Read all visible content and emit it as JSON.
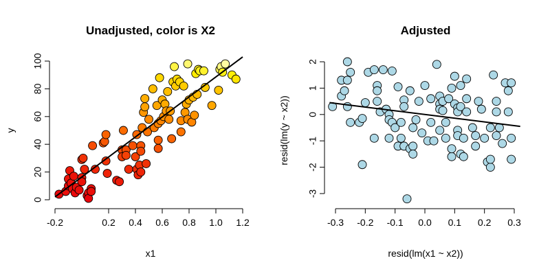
{
  "chart_data": [
    {
      "type": "scatter",
      "title": "Unadjusted, color is X2",
      "xlabel": "x1",
      "ylabel": "y",
      "xlim": [
        -0.2,
        1.2
      ],
      "ylim": [
        0,
        100
      ],
      "xticks": [
        "-0.2",
        "0.2",
        "0.4",
        "0.6",
        "0.8",
        "1.0",
        "1.2"
      ],
      "xtick_values": [
        -0.2,
        0.2,
        0.4,
        0.6,
        0.8,
        1.0,
        1.2
      ],
      "yticks": [
        "0",
        "20",
        "40",
        "60",
        "80",
        "100"
      ],
      "ytick_values": [
        0,
        20,
        40,
        60,
        80,
        100
      ],
      "color_scale": [
        "#e8000b",
        "#ff8000",
        "#ffee00",
        "#ffffcc"
      ],
      "line": {
        "x": [
          -0.2,
          1.2
        ],
        "y": [
          2,
          103
        ],
        "color": "#000000"
      },
      "points": [
        {
          "x": -0.17,
          "y": 4,
          "c": 0.02
        },
        {
          "x": -0.12,
          "y": 6,
          "c": 0.04
        },
        {
          "x": -0.1,
          "y": 10,
          "c": 0.03
        },
        {
          "x": -0.1,
          "y": 15,
          "c": 0.05
        },
        {
          "x": -0.09,
          "y": 21,
          "c": 0.06
        },
        {
          "x": -0.08,
          "y": 12,
          "c": 0.04
        },
        {
          "x": -0.07,
          "y": 8,
          "c": 0.03
        },
        {
          "x": -0.06,
          "y": 17,
          "c": 0.05
        },
        {
          "x": -0.05,
          "y": 5,
          "c": 0.02
        },
        {
          "x": -0.04,
          "y": 9,
          "c": 0.04
        },
        {
          "x": -0.02,
          "y": 7,
          "c": 0.03
        },
        {
          "x": 0.0,
          "y": 16,
          "c": 0.06
        },
        {
          "x": 0.0,
          "y": 13,
          "c": 0.05
        },
        {
          "x": 0.0,
          "y": 29,
          "c": 0.12
        },
        {
          "x": 0.01,
          "y": 30,
          "c": 0.13
        },
        {
          "x": 0.02,
          "y": 22,
          "c": 0.1
        },
        {
          "x": 0.04,
          "y": 3,
          "c": 0.02
        },
        {
          "x": 0.05,
          "y": 5,
          "c": 0.03
        },
        {
          "x": 0.05,
          "y": 1,
          "c": 0.01
        },
        {
          "x": 0.07,
          "y": 8,
          "c": 0.04
        },
        {
          "x": 0.07,
          "y": 6,
          "c": 0.04
        },
        {
          "x": 0.08,
          "y": 39,
          "c": 0.2
        },
        {
          "x": 0.1,
          "y": 22,
          "c": 0.1
        },
        {
          "x": 0.16,
          "y": 41,
          "c": 0.22
        },
        {
          "x": 0.17,
          "y": 42,
          "c": 0.23
        },
        {
          "x": 0.18,
          "y": 47,
          "c": 0.26
        },
        {
          "x": 0.18,
          "y": 28,
          "c": 0.13
        },
        {
          "x": 0.19,
          "y": 19,
          "c": 0.09
        },
        {
          "x": 0.26,
          "y": 14,
          "c": 0.07
        },
        {
          "x": 0.28,
          "y": 13,
          "c": 0.07
        },
        {
          "x": 0.3,
          "y": 36,
          "c": 0.19
        },
        {
          "x": 0.3,
          "y": 31,
          "c": 0.16
        },
        {
          "x": 0.31,
          "y": 50,
          "c": 0.28
        },
        {
          "x": 0.33,
          "y": 36,
          "c": 0.2
        },
        {
          "x": 0.33,
          "y": 32,
          "c": 0.17
        },
        {
          "x": 0.35,
          "y": 22,
          "c": 0.11
        },
        {
          "x": 0.38,
          "y": 39,
          "c": 0.21
        },
        {
          "x": 0.4,
          "y": 31,
          "c": 0.17
        },
        {
          "x": 0.41,
          "y": 47,
          "c": 0.27
        },
        {
          "x": 0.41,
          "y": 22,
          "c": 0.11
        },
        {
          "x": 0.42,
          "y": 18,
          "c": 0.09
        },
        {
          "x": 0.43,
          "y": 25,
          "c": 0.13
        },
        {
          "x": 0.44,
          "y": 20,
          "c": 0.1
        },
        {
          "x": 0.44,
          "y": 39,
          "c": 0.22
        },
        {
          "x": 0.44,
          "y": 35,
          "c": 0.19
        },
        {
          "x": 0.45,
          "y": 52,
          "c": 0.32
        },
        {
          "x": 0.46,
          "y": 63,
          "c": 0.4
        },
        {
          "x": 0.47,
          "y": 73,
          "c": 0.47
        },
        {
          "x": 0.47,
          "y": 67,
          "c": 0.44
        },
        {
          "x": 0.48,
          "y": 26,
          "c": 0.13
        },
        {
          "x": 0.49,
          "y": 49,
          "c": 0.3
        },
        {
          "x": 0.5,
          "y": 58,
          "c": 0.36
        },
        {
          "x": 0.53,
          "y": 80,
          "c": 0.52
        },
        {
          "x": 0.54,
          "y": 52,
          "c": 0.32
        },
        {
          "x": 0.56,
          "y": 68,
          "c": 0.45
        },
        {
          "x": 0.57,
          "y": 55,
          "c": 0.34
        },
        {
          "x": 0.57,
          "y": 43,
          "c": 0.25
        },
        {
          "x": 0.57,
          "y": 37,
          "c": 0.21
        },
        {
          "x": 0.58,
          "y": 88,
          "c": 0.6
        },
        {
          "x": 0.59,
          "y": 57,
          "c": 0.35
        },
        {
          "x": 0.6,
          "y": 72,
          "c": 0.47
        },
        {
          "x": 0.61,
          "y": 60,
          "c": 0.38
        },
        {
          "x": 0.62,
          "y": 69,
          "c": 0.46
        },
        {
          "x": 0.63,
          "y": 64,
          "c": 0.41
        },
        {
          "x": 0.64,
          "y": 78,
          "c": 0.52
        },
        {
          "x": 0.65,
          "y": 58,
          "c": 0.37
        },
        {
          "x": 0.66,
          "y": 64,
          "c": 0.42
        },
        {
          "x": 0.67,
          "y": 44,
          "c": 0.26
        },
        {
          "x": 0.68,
          "y": 85,
          "c": 0.58
        },
        {
          "x": 0.69,
          "y": 96,
          "c": 0.78
        },
        {
          "x": 0.7,
          "y": 82,
          "c": 0.56
        },
        {
          "x": 0.71,
          "y": 87,
          "c": 0.6
        },
        {
          "x": 0.73,
          "y": 85,
          "c": 0.59
        },
        {
          "x": 0.74,
          "y": 49,
          "c": 0.3
        },
        {
          "x": 0.74,
          "y": 57,
          "c": 0.36
        },
        {
          "x": 0.76,
          "y": 82,
          "c": 0.56
        },
        {
          "x": 0.77,
          "y": 63,
          "c": 0.41
        },
        {
          "x": 0.78,
          "y": 69,
          "c": 0.46
        },
        {
          "x": 0.79,
          "y": 98,
          "c": 0.85
        },
        {
          "x": 0.79,
          "y": 58,
          "c": 0.37
        },
        {
          "x": 0.8,
          "y": 72,
          "c": 0.48
        },
        {
          "x": 0.82,
          "y": 56,
          "c": 0.35
        },
        {
          "x": 0.83,
          "y": 74,
          "c": 0.5
        },
        {
          "x": 0.84,
          "y": 61,
          "c": 0.39
        },
        {
          "x": 0.85,
          "y": 91,
          "c": 0.66
        },
        {
          "x": 0.86,
          "y": 76,
          "c": 0.51
        },
        {
          "x": 0.87,
          "y": 94,
          "c": 0.72
        },
        {
          "x": 0.88,
          "y": 93,
          "c": 0.7
        },
        {
          "x": 0.91,
          "y": 93,
          "c": 0.74
        },
        {
          "x": 0.92,
          "y": 81,
          "c": 0.56
        },
        {
          "x": 0.97,
          "y": 68,
          "c": 0.45
        },
        {
          "x": 1.02,
          "y": 79,
          "c": 0.54
        },
        {
          "x": 1.03,
          "y": 94,
          "c": 0.8
        },
        {
          "x": 1.04,
          "y": 96,
          "c": 0.88
        },
        {
          "x": 1.05,
          "y": 92,
          "c": 0.7
        },
        {
          "x": 1.07,
          "y": 98,
          "c": 0.93
        },
        {
          "x": 1.12,
          "y": 90,
          "c": 0.68
        },
        {
          "x": 1.15,
          "y": 87,
          "c": 0.64
        }
      ]
    },
    {
      "type": "scatter",
      "title": "Adjusted",
      "xlabel": "resid(lm(x1 ~ x2))",
      "ylabel": "resid(lm(y ~ x2))",
      "xlim": [
        -0.3,
        0.3
      ],
      "ylim": [
        -3,
        2
      ],
      "xticks": [
        "-0.3",
        "-0.2",
        "-0.1",
        "0.0",
        "0.1",
        "0.2",
        "0.3"
      ],
      "xtick_values": [
        -0.3,
        -0.2,
        -0.1,
        0.0,
        0.1,
        0.2,
        0.3
      ],
      "yticks": [
        "-3",
        "-2",
        "-1",
        "0",
        "1",
        "2"
      ],
      "ytick_values": [
        -3,
        -2,
        -1,
        0,
        1,
        2
      ],
      "point_color": "#add8e6",
      "line": {
        "x": [
          -0.32,
          0.32
        ],
        "y": [
          0.45,
          -0.45
        ],
        "color": "#000000"
      },
      "points": [
        {
          "x": -0.31,
          "y": 0.3
        },
        {
          "x": -0.28,
          "y": 0.7
        },
        {
          "x": -0.28,
          "y": 1.3
        },
        {
          "x": -0.27,
          "y": 0.9
        },
        {
          "x": -0.26,
          "y": 2.0
        },
        {
          "x": -0.26,
          "y": 1.3
        },
        {
          "x": -0.26,
          "y": 0.3
        },
        {
          "x": -0.25,
          "y": -0.3
        },
        {
          "x": -0.25,
          "y": 1.6
        },
        {
          "x": -0.22,
          "y": -0.3
        },
        {
          "x": -0.21,
          "y": -0.15
        },
        {
          "x": -0.21,
          "y": -1.9
        },
        {
          "x": -0.2,
          "y": 0.45
        },
        {
          "x": -0.19,
          "y": 1.6
        },
        {
          "x": -0.17,
          "y": 1.7
        },
        {
          "x": -0.16,
          "y": 1.1
        },
        {
          "x": -0.16,
          "y": 0.9
        },
        {
          "x": -0.16,
          "y": 0.5
        },
        {
          "x": -0.17,
          "y": -0.9
        },
        {
          "x": -0.15,
          "y": 0.1
        },
        {
          "x": -0.14,
          "y": 1.7
        },
        {
          "x": -0.13,
          "y": 0.2
        },
        {
          "x": -0.12,
          "y": 0.0
        },
        {
          "x": -0.12,
          "y": -0.2
        },
        {
          "x": -0.12,
          "y": -0.9
        },
        {
          "x": -0.11,
          "y": 1.65
        },
        {
          "x": -0.11,
          "y": -0.3
        },
        {
          "x": -0.1,
          "y": -0.5
        },
        {
          "x": -0.09,
          "y": 1.05
        },
        {
          "x": -0.09,
          "y": -1.2
        },
        {
          "x": -0.08,
          "y": -0.3
        },
        {
          "x": -0.08,
          "y": -0.9
        },
        {
          "x": -0.07,
          "y": 0.55
        },
        {
          "x": -0.07,
          "y": 0.3
        },
        {
          "x": -0.07,
          "y": -1.2
        },
        {
          "x": -0.06,
          "y": -3.2
        },
        {
          "x": -0.05,
          "y": 0.9
        },
        {
          "x": -0.05,
          "y": -1.3
        },
        {
          "x": -0.04,
          "y": -0.5
        },
        {
          "x": -0.04,
          "y": -1.2
        },
        {
          "x": -0.04,
          "y": -1.5
        },
        {
          "x": -0.03,
          "y": -0.2
        },
        {
          "x": -0.02,
          "y": 0.5
        },
        {
          "x": -0.01,
          "y": -0.7
        },
        {
          "x": 0.0,
          "y": 1.1
        },
        {
          "x": 0.01,
          "y": -1.0
        },
        {
          "x": 0.02,
          "y": 0.6
        },
        {
          "x": 0.02,
          "y": -0.3
        },
        {
          "x": 0.03,
          "y": -1.0
        },
        {
          "x": 0.04,
          "y": 1.9
        },
        {
          "x": 0.05,
          "y": 0.7
        },
        {
          "x": 0.05,
          "y": 0.4
        },
        {
          "x": 0.05,
          "y": 0.2
        },
        {
          "x": 0.05,
          "y": -0.6
        },
        {
          "x": 0.06,
          "y": 0.5
        },
        {
          "x": 0.06,
          "y": 0.15
        },
        {
          "x": 0.07,
          "y": -0.3
        },
        {
          "x": 0.07,
          "y": -0.9
        },
        {
          "x": 0.08,
          "y": 0.6
        },
        {
          "x": 0.09,
          "y": 1.0
        },
        {
          "x": 0.09,
          "y": -1.6
        },
        {
          "x": 0.09,
          "y": -1.3
        },
        {
          "x": 0.1,
          "y": 1.45
        },
        {
          "x": 0.1,
          "y": 0.4
        },
        {
          "x": 0.11,
          "y": 0.25
        },
        {
          "x": 0.11,
          "y": 0.1
        },
        {
          "x": 0.11,
          "y": -0.6
        },
        {
          "x": 0.11,
          "y": -0.8
        },
        {
          "x": 0.12,
          "y": 1.1
        },
        {
          "x": 0.12,
          "y": 0.3
        },
        {
          "x": 0.12,
          "y": -1.5
        },
        {
          "x": 0.13,
          "y": -0.9
        },
        {
          "x": 0.13,
          "y": -1.6
        },
        {
          "x": 0.14,
          "y": 1.35
        },
        {
          "x": 0.14,
          "y": 0.6
        },
        {
          "x": 0.14,
          "y": 0.1
        },
        {
          "x": 0.16,
          "y": -0.5
        },
        {
          "x": 0.17,
          "y": -0.8
        },
        {
          "x": 0.17,
          "y": -1.2
        },
        {
          "x": 0.18,
          "y": 0.5
        },
        {
          "x": 0.19,
          "y": 0.2
        },
        {
          "x": 0.2,
          "y": -0.9
        },
        {
          "x": 0.21,
          "y": -1.8
        },
        {
          "x": 0.22,
          "y": -2.0
        },
        {
          "x": 0.22,
          "y": -0.5
        },
        {
          "x": 0.22,
          "y": -1.7
        },
        {
          "x": 0.23,
          "y": 1.5
        },
        {
          "x": 0.24,
          "y": 0.5
        },
        {
          "x": 0.24,
          "y": 0.1
        },
        {
          "x": 0.24,
          "y": -0.8
        },
        {
          "x": 0.25,
          "y": -0.5
        },
        {
          "x": 0.26,
          "y": -1.1
        },
        {
          "x": 0.27,
          "y": 1.2
        },
        {
          "x": 0.28,
          "y": 0.9
        },
        {
          "x": 0.28,
          "y": 0.1
        },
        {
          "x": 0.29,
          "y": 1.2
        },
        {
          "x": 0.29,
          "y": -1.7
        },
        {
          "x": 0.29,
          "y": -0.9
        }
      ]
    }
  ]
}
